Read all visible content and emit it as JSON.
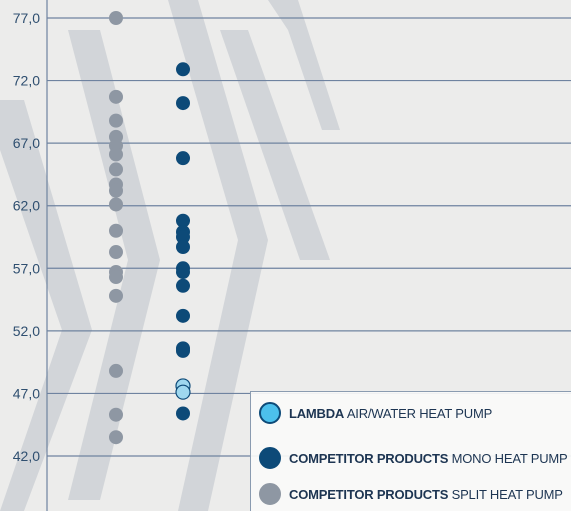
{
  "chart_data": {
    "type": "scatter",
    "title": "",
    "xlabel": "",
    "ylabel": "",
    "ylim": [
      40.0,
      79.0
    ],
    "yticks": [
      "77,0",
      "72,0",
      "67,0",
      "62,0",
      "57,0",
      "52,0",
      "47,0",
      "42,0"
    ],
    "ytick_values": [
      77,
      72,
      67,
      62,
      57,
      52,
      47,
      42
    ],
    "grid": true,
    "legend_position": "bottom-right",
    "series": [
      {
        "name_bold": "COMPETITOR PRODUCTS",
        "name_rest": "SPLIT HEAT PUMP",
        "color": "#8e97a3",
        "column": 1,
        "values": [
          77.0,
          70.7,
          68.8,
          67.5,
          66.8,
          66.1,
          64.9,
          63.7,
          63.2,
          62.1,
          60.0,
          58.3,
          56.7,
          56.3,
          54.8,
          48.8,
          45.3,
          43.5
        ]
      },
      {
        "name_bold": "COMPETITOR PRODUCTS",
        "name_rest": "MONO HEAT PUMP",
        "color": "#0d4a78",
        "column": 2,
        "values": [
          72.9,
          70.2,
          65.8,
          60.8,
          59.9,
          59.5,
          58.7,
          57.0,
          56.7,
          55.6,
          53.2,
          50.6,
          50.4,
          45.4
        ]
      },
      {
        "name_bold": "LAMBDA",
        "name_rest": "AIR/WATER HEAT PUMP",
        "color": "#9fd8ef",
        "column": 2,
        "values": [
          47.6,
          47.1
        ]
      }
    ]
  },
  "legend": {
    "items": [
      {
        "bold": "LAMBDA",
        "rest": " AIR/WATER HEAT PUMP",
        "fill": "#4cc0ec",
        "stroke": "#0d4a78"
      },
      {
        "bold": "COMPETITOR PRODUCTS",
        "rest": " MONO HEAT PUMP",
        "fill": "#0d4a78",
        "stroke": "#0d4a78"
      },
      {
        "bold": "COMPETITOR PRODUCTS",
        "rest": " SPLIT HEAT PUMP",
        "fill": "#8e97a3",
        "stroke": "#8e97a3"
      }
    ]
  },
  "colors": {
    "background": "#ececeb",
    "grid": "#6f83a0",
    "axis": "#6f83a0",
    "chevron": "#c9ced3",
    "tick_text": "#2f4f70"
  }
}
